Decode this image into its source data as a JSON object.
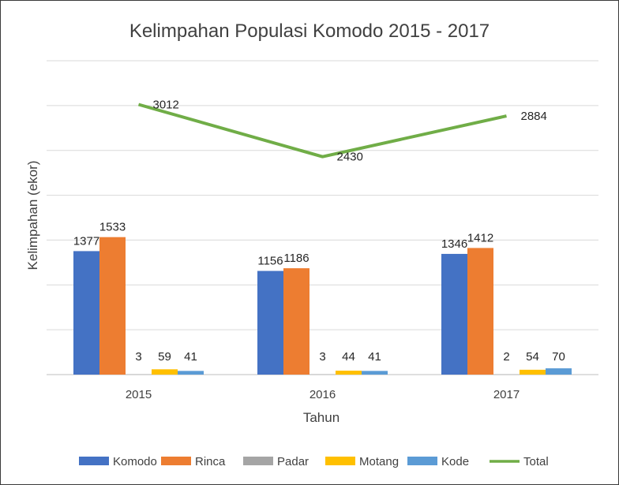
{
  "chart_data": {
    "type": "bar",
    "title": "Kelimpahan Populasi Komodo 2015 - 2017",
    "xlabel": "Tahun",
    "ylabel": "Kelimpahan (ekor)",
    "categories": [
      "2015",
      "2016",
      "2017"
    ],
    "ylim": [
      0,
      3500
    ],
    "grid": true,
    "legend_position": "bottom",
    "series": [
      {
        "name": "Komodo",
        "type": "bar",
        "color": "#4472C4",
        "values": [
          1377,
          1156,
          1346
        ]
      },
      {
        "name": "Rinca",
        "type": "bar",
        "color": "#ED7D31",
        "values": [
          1533,
          1186,
          1412
        ]
      },
      {
        "name": "Padar",
        "type": "bar",
        "color": "#A5A5A5",
        "values": [
          3,
          3,
          2
        ]
      },
      {
        "name": "Motang",
        "type": "bar",
        "color": "#FFC000",
        "values": [
          59,
          44,
          54
        ]
      },
      {
        "name": "Kode",
        "type": "bar",
        "color": "#5B9BD5",
        "values": [
          41,
          41,
          70
        ]
      },
      {
        "name": "Total",
        "type": "line",
        "color": "#70AD47",
        "values": [
          3012,
          2430,
          2884
        ]
      }
    ]
  }
}
